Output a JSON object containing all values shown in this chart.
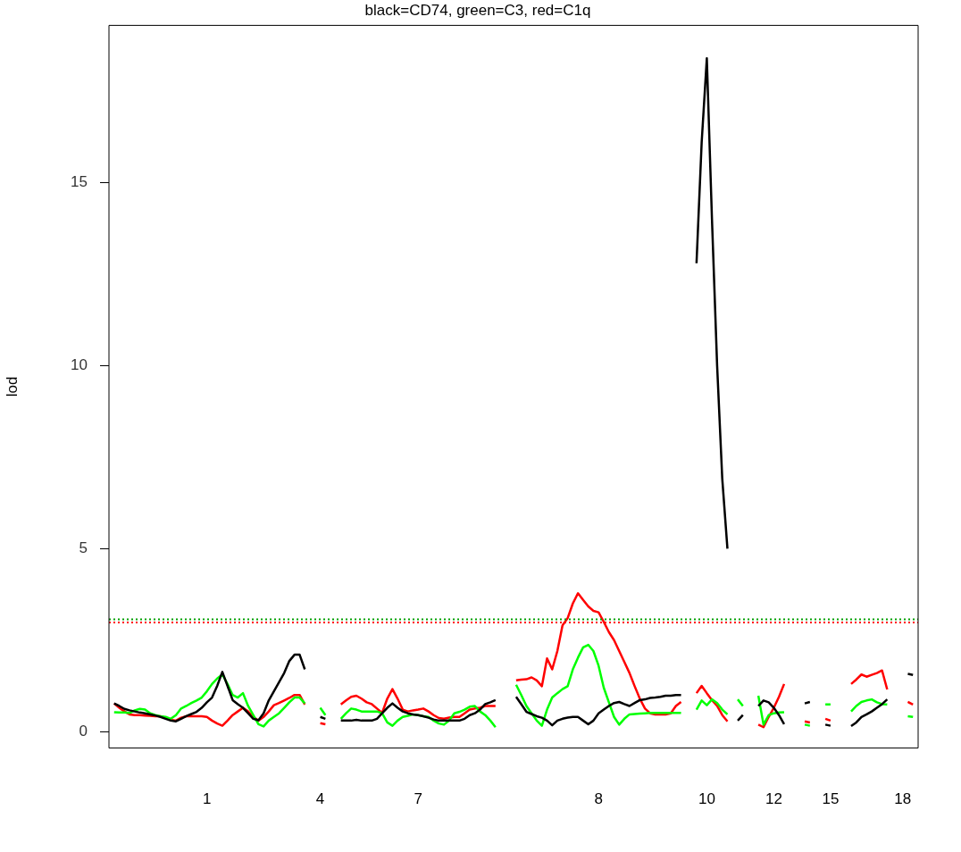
{
  "chart_data": {
    "type": "line",
    "title": "black=CD74, green=C3, red=C1q",
    "ylabel": "lod",
    "categories": [
      null,
      null,
      null,
      null,
      null,
      null,
      null,
      null,
      null,
      null,
      null,
      null,
      null,
      null,
      null,
      null,
      null,
      null,
      null,
      "1",
      null,
      null,
      null,
      null,
      null,
      null,
      null,
      null,
      null,
      null,
      null,
      null,
      null,
      null,
      null,
      null,
      null,
      null,
      null,
      null,
      null,
      "4",
      null,
      null,
      null,
      null,
      null,
      null,
      null,
      null,
      null,
      null,
      null,
      null,
      null,
      null,
      null,
      null,
      null,
      null,
      "7",
      null,
      null,
      null,
      null,
      null,
      null,
      null,
      null,
      null,
      null,
      null,
      null,
      null,
      null,
      null,
      null,
      null,
      null,
      null,
      null,
      null,
      null,
      null,
      null,
      null,
      null,
      null,
      null,
      null,
      null,
      null,
      null,
      null,
      null,
      "8",
      null,
      null,
      null,
      null,
      null,
      null,
      null,
      null,
      null,
      null,
      null,
      null,
      null,
      null,
      null,
      null,
      null,
      null,
      null,
      null,
      "10",
      null,
      null,
      null,
      null,
      null,
      null,
      null,
      null,
      null,
      null,
      null,
      null,
      "12",
      null,
      null,
      null,
      null,
      null,
      null,
      null,
      null,
      null,
      null,
      "15",
      null,
      null,
      null,
      null,
      null,
      null,
      null,
      null,
      null,
      null,
      null,
      null,
      null,
      "18",
      null,
      null,
      null
    ],
    "series": [
      {
        "color": "#000000",
        "values": [
          null,
          0.77,
          0.7,
          0.62,
          0.58,
          0.55,
          0.52,
          0.5,
          0.47,
          0.44,
          0.4,
          0.35,
          0.3,
          0.28,
          0.35,
          0.42,
          0.48,
          0.54,
          0.65,
          0.8,
          0.93,
          1.25,
          1.63,
          1.25,
          0.86,
          0.75,
          0.65,
          0.5,
          0.35,
          0.31,
          0.5,
          0.85,
          1.1,
          1.35,
          1.6,
          1.93,
          2.1,
          2.1,
          1.7,
          null,
          null,
          0.4,
          0.35,
          null,
          null,
          0.3,
          0.3,
          0.3,
          0.32,
          0.3,
          0.3,
          0.3,
          0.35,
          0.5,
          0.65,
          0.77,
          0.65,
          0.55,
          0.5,
          0.47,
          0.45,
          0.42,
          0.38,
          0.33,
          0.3,
          0.3,
          0.3,
          0.3,
          0.3,
          0.35,
          0.45,
          0.5,
          0.6,
          0.75,
          0.8,
          0.86,
          null,
          null,
          null,
          0.95,
          0.75,
          0.54,
          0.48,
          0.42,
          0.38,
          0.3,
          0.17,
          0.3,
          0.35,
          0.38,
          0.4,
          0.4,
          0.3,
          0.2,
          0.3,
          0.5,
          0.6,
          0.7,
          0.78,
          0.81,
          0.75,
          0.7,
          0.78,
          0.86,
          0.88,
          0.92,
          0.93,
          0.95,
          0.98,
          0.98,
          1.0,
          1.0,
          null,
          null,
          12.8,
          16.1,
          18.4,
          14.0,
          10.0,
          6.9,
          5.0,
          null,
          0.3,
          0.45,
          null,
          null,
          0.7,
          0.85,
          0.8,
          0.65,
          0.45,
          0.2,
          null,
          null,
          null,
          0.77,
          0.81,
          null,
          null,
          0.19,
          0.16,
          null,
          null,
          null,
          0.15,
          0.25,
          0.4,
          0.47,
          0.55,
          0.65,
          0.75,
          0.88,
          null,
          null,
          null,
          1.58,
          1.55,
          null
        ]
      },
      {
        "color": "#00ff00",
        "values": [
          null,
          0.53,
          0.52,
          0.52,
          0.51,
          0.58,
          0.62,
          0.6,
          0.5,
          0.45,
          0.42,
          0.4,
          0.35,
          0.45,
          0.63,
          0.7,
          0.78,
          0.85,
          0.93,
          1.1,
          1.3,
          1.45,
          1.56,
          1.3,
          1.0,
          0.93,
          1.05,
          0.7,
          0.45,
          0.2,
          0.14,
          0.3,
          0.4,
          0.5,
          0.65,
          0.8,
          0.93,
          0.93,
          0.77,
          null,
          null,
          0.65,
          0.45,
          null,
          null,
          0.35,
          0.5,
          0.63,
          0.6,
          0.55,
          0.55,
          0.55,
          0.55,
          0.5,
          0.25,
          0.16,
          0.3,
          0.4,
          0.43,
          0.47,
          0.45,
          0.42,
          0.4,
          0.3,
          0.22,
          0.19,
          0.3,
          0.5,
          0.54,
          0.6,
          0.68,
          0.7,
          0.55,
          0.45,
          0.3,
          0.12,
          null,
          null,
          null,
          1.28,
          1.0,
          0.7,
          0.5,
          0.3,
          0.16,
          0.6,
          0.93,
          1.05,
          1.16,
          1.24,
          1.7,
          2.02,
          2.3,
          2.37,
          2.2,
          1.8,
          1.2,
          0.8,
          0.4,
          0.19,
          0.35,
          0.47,
          0.48,
          0.49,
          0.5,
          0.51,
          0.51,
          0.51,
          0.51,
          0.51,
          0.51,
          0.51,
          null,
          null,
          0.6,
          0.85,
          0.72,
          0.88,
          0.78,
          0.6,
          0.47,
          null,
          0.88,
          0.7,
          null,
          null,
          0.98,
          0.19,
          0.45,
          0.5,
          0.52,
          0.53,
          null,
          null,
          null,
          0.19,
          0.16,
          null,
          null,
          0.74,
          0.74,
          null,
          null,
          null,
          0.55,
          0.7,
          0.81,
          0.85,
          0.88,
          0.8,
          0.75,
          0.74,
          null,
          null,
          null,
          0.42,
          0.4,
          null
        ]
      },
      {
        "color": "#ff0000",
        "values": [
          null,
          0.77,
          0.65,
          0.55,
          0.47,
          0.45,
          0.45,
          0.44,
          0.43,
          0.42,
          0.42,
          0.38,
          0.32,
          0.3,
          0.38,
          0.42,
          0.42,
          0.42,
          0.42,
          0.4,
          0.3,
          0.22,
          0.16,
          0.3,
          0.45,
          0.55,
          0.65,
          0.55,
          0.4,
          0.3,
          0.4,
          0.55,
          0.72,
          0.78,
          0.85,
          0.92,
          1.0,
          1.0,
          0.74,
          null,
          null,
          0.23,
          0.2,
          null,
          null,
          0.74,
          0.85,
          0.95,
          0.98,
          0.9,
          0.8,
          0.75,
          0.63,
          0.51,
          0.9,
          1.16,
          0.9,
          0.6,
          0.55,
          0.58,
          0.6,
          0.63,
          0.55,
          0.45,
          0.37,
          0.35,
          0.38,
          0.4,
          0.4,
          0.5,
          0.6,
          0.63,
          0.65,
          0.7,
          0.7,
          0.7,
          null,
          null,
          null,
          1.4,
          1.42,
          1.43,
          1.48,
          1.4,
          1.24,
          2.0,
          1.7,
          2.2,
          2.9,
          3.1,
          3.5,
          3.78,
          3.6,
          3.42,
          3.3,
          3.26,
          3.0,
          2.72,
          2.5,
          2.2,
          1.9,
          1.6,
          1.24,
          0.9,
          0.63,
          0.5,
          0.47,
          0.47,
          0.47,
          0.5,
          0.7,
          0.81,
          null,
          null,
          1.05,
          1.25,
          1.05,
          0.86,
          0.7,
          0.45,
          0.28,
          null,
          null,
          null,
          null,
          null,
          0.19,
          0.12,
          0.4,
          0.65,
          0.95,
          1.3,
          null,
          null,
          null,
          0.28,
          0.25,
          null,
          null,
          0.35,
          0.3,
          null,
          null,
          null,
          1.3,
          1.42,
          1.56,
          1.5,
          1.55,
          1.6,
          1.67,
          1.15,
          null,
          null,
          null,
          0.81,
          0.74,
          null
        ]
      }
    ],
    "ylim": [
      -0.45,
      19.3
    ],
    "yticks": [
      0,
      5,
      10,
      15
    ],
    "ref_lines": [
      {
        "axis": "y",
        "value": 3.07,
        "color": "#00a000",
        "line_style": "dotted"
      },
      {
        "axis": "y",
        "value": 2.98,
        "color": "#ff0000",
        "line_style": "dotted"
      }
    ],
    "marker": "none",
    "line_style": "solid"
  }
}
